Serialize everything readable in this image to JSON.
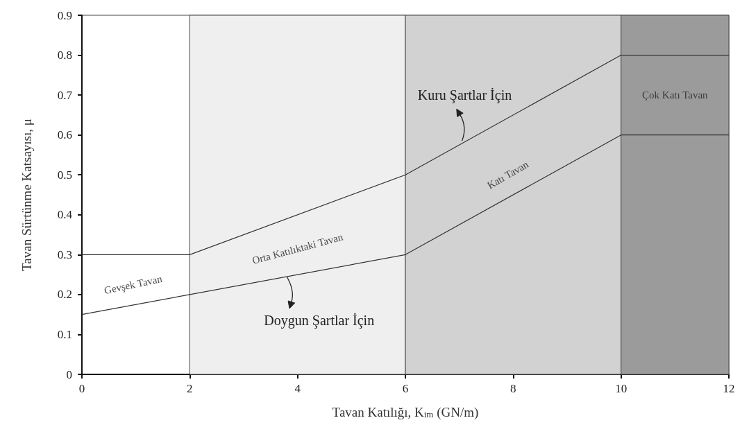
{
  "chart_data": {
    "type": "line",
    "xlabel": "Tavan Katılığı, K$_{im}$ (GN/m)",
    "ylabel": "Tavan Sürtünme Katsayısı, μ",
    "x": [
      0,
      2,
      6,
      10,
      12
    ],
    "series": [
      {
        "name": "Kuru Şartlar İçin",
        "color": "#333333",
        "values": [
          0.3,
          0.3,
          0.5,
          0.8,
          0.8
        ]
      },
      {
        "name": "Doygun Şartlar İçin",
        "color": "#333333",
        "values": [
          0.15,
          0.2,
          0.3,
          0.6,
          0.6
        ]
      }
    ],
    "xlim": [
      0,
      12
    ],
    "xticks": [
      0,
      2,
      4,
      6,
      8,
      10,
      12
    ],
    "ylim": [
      0,
      0.9
    ],
    "yticks": [
      0,
      0.1,
      0.2,
      0.3,
      0.4,
      0.5,
      0.6,
      0.7,
      0.8,
      0.9
    ],
    "bands": [
      {
        "axis": "x",
        "from": 2,
        "to": 6,
        "color": "#efefef"
      },
      {
        "axis": "x",
        "from": 6,
        "to": 10,
        "color": "#d2d2d2"
      },
      {
        "axis": "x",
        "from": 10,
        "to": 12,
        "color": "#9b9b9b"
      }
    ],
    "annotations": [
      "Gevşek Tavan",
      "Orta Katılıktaki Tavan",
      "Katı Tavan",
      "Çok Katı Tavan"
    ],
    "grid": false,
    "legend": false,
    "marker": "none",
    "line_style": "solid"
  }
}
